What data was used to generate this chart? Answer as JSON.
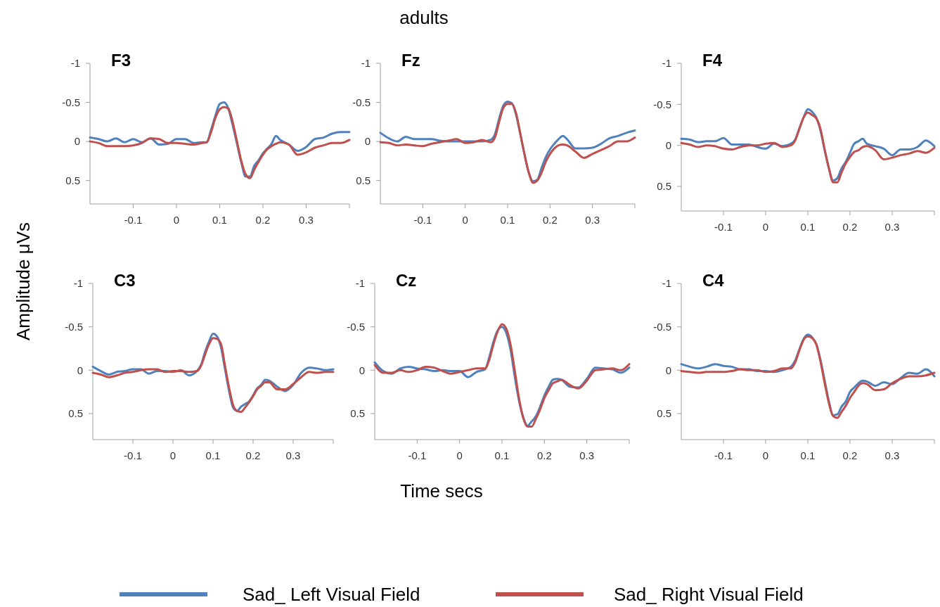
{
  "chart_data": [
    {
      "type": "line",
      "title": "F3",
      "annotations": [
        "adults"
      ],
      "xlabel": "Time secs",
      "ylabel": "Amplitude μVs",
      "legend": "bottom",
      "x": [
        -0.2,
        -0.18,
        -0.16,
        -0.14,
        -0.12,
        -0.1,
        -0.08,
        -0.06,
        -0.04,
        -0.02,
        0,
        0.02,
        0.04,
        0.06,
        0.07,
        0.08,
        0.09,
        0.1,
        0.11,
        0.12,
        0.13,
        0.14,
        0.15,
        0.16,
        0.17,
        0.18,
        0.19,
        0.2,
        0.21,
        0.22,
        0.23,
        0.24,
        0.26,
        0.28,
        0.3,
        0.32,
        0.34,
        0.36,
        0.38,
        0.4
      ],
      "xlim": [
        -0.2,
        0.4
      ],
      "xticks": [
        -0.1,
        0,
        0.1,
        0.2,
        0.3
      ],
      "ylim": [
        0.8,
        -1
      ],
      "yticks": [
        -1,
        -0.5,
        0,
        0.5
      ],
      "series": [
        {
          "name": "Sad_ Left Visual Field",
          "color": "#4f81bd",
          "values": [
            -0.05,
            -0.03,
            0,
            -0.04,
            0.01,
            -0.03,
            0.01,
            -0.04,
            0.04,
            0.03,
            -0.03,
            -0.03,
            0.02,
            0.01,
            0.01,
            -0.15,
            -0.33,
            -0.48,
            -0.5,
            -0.42,
            -0.21,
            0.03,
            0.27,
            0.45,
            0.45,
            0.31,
            0.24,
            0.15,
            0.09,
            0.03,
            -0.07,
            -0.02,
            0.04,
            0.12,
            0.07,
            -0.03,
            -0.05,
            -0.1,
            -0.12,
            -0.12
          ]
        },
        {
          "name": "Sad_ Right Visual Field",
          "color": "#c0504d",
          "values": [
            0,
            0.02,
            0.06,
            0.06,
            0.06,
            0.05,
            0.02,
            -0.04,
            -0.03,
            0.02,
            0.02,
            0.03,
            0.04,
            0.02,
            0.01,
            -0.12,
            -0.3,
            -0.41,
            -0.44,
            -0.42,
            -0.25,
            0,
            0.25,
            0.42,
            0.47,
            0.36,
            0.26,
            0.17,
            0.1,
            0.06,
            0.03,
            0.01,
            0.04,
            0.17,
            0.14,
            0.08,
            0.05,
            0.02,
            0.02,
            -0.02
          ]
        }
      ]
    },
    {
      "type": "line",
      "title": "Fz",
      "x": [
        -0.2,
        -0.18,
        -0.16,
        -0.14,
        -0.12,
        -0.1,
        -0.08,
        -0.06,
        -0.04,
        -0.02,
        0,
        0.02,
        0.04,
        0.06,
        0.07,
        0.08,
        0.09,
        0.1,
        0.11,
        0.12,
        0.13,
        0.14,
        0.15,
        0.16,
        0.17,
        0.18,
        0.19,
        0.2,
        0.21,
        0.22,
        0.23,
        0.24,
        0.26,
        0.28,
        0.3,
        0.32,
        0.34,
        0.36,
        0.38,
        0.4
      ],
      "xlim": [
        -0.2,
        0.4
      ],
      "xticks": [
        -0.1,
        0,
        0.1,
        0.2,
        0.3
      ],
      "ylim": [
        0.8,
        -1
      ],
      "yticks": [
        -1,
        -0.5,
        0,
        0.5
      ],
      "series": [
        {
          "color": "#4f81bd",
          "values": [
            -0.11,
            -0.04,
            0,
            -0.06,
            -0.03,
            -0.03,
            -0.03,
            -0.01,
            0,
            0,
            0,
            0,
            0,
            -0.02,
            -0.09,
            -0.29,
            -0.46,
            -0.51,
            -0.49,
            -0.34,
            -0.09,
            0.17,
            0.4,
            0.51,
            0.49,
            0.34,
            0.2,
            0.1,
            0.03,
            -0.03,
            -0.07,
            -0.03,
            0.09,
            0.09,
            0.08,
            0.03,
            -0.04,
            -0.07,
            -0.11,
            -0.14
          ]
        },
        {
          "color": "#c0504d",
          "values": [
            0.01,
            0.02,
            0.05,
            0.04,
            0.05,
            0.06,
            0.03,
            0.01,
            -0.01,
            -0.03,
            0.02,
            0.01,
            -0.02,
            0.01,
            -0.05,
            -0.25,
            -0.43,
            -0.48,
            -0.48,
            -0.36,
            -0.1,
            0.17,
            0.4,
            0.53,
            0.5,
            0.4,
            0.26,
            0.16,
            0.09,
            0.05,
            0.04,
            0.05,
            0.13,
            0.21,
            0.16,
            0.11,
            0.06,
            0,
            0,
            -0.05
          ]
        }
      ]
    },
    {
      "type": "line",
      "title": "F4",
      "x": [
        -0.2,
        -0.18,
        -0.16,
        -0.14,
        -0.12,
        -0.1,
        -0.08,
        -0.06,
        -0.04,
        -0.02,
        0,
        0.02,
        0.04,
        0.06,
        0.07,
        0.08,
        0.09,
        0.1,
        0.11,
        0.12,
        0.13,
        0.14,
        0.15,
        0.16,
        0.17,
        0.18,
        0.19,
        0.2,
        0.21,
        0.22,
        0.23,
        0.24,
        0.26,
        0.28,
        0.3,
        0.32,
        0.34,
        0.36,
        0.38,
        0.4
      ],
      "xlim": [
        -0.2,
        0.4
      ],
      "xticks": [
        -0.1,
        0,
        0.1,
        0.2,
        0.3
      ],
      "ylim": [
        0.8,
        -1
      ],
      "yticks": [
        -1,
        -0.5,
        0,
        0.5
      ],
      "series": [
        {
          "color": "#4f81bd",
          "values": [
            -0.08,
            -0.07,
            -0.04,
            -0.05,
            -0.05,
            -0.09,
            -0.01,
            -0.01,
            -0.01,
            0.02,
            0.04,
            -0.02,
            0.01,
            -0.02,
            -0.07,
            -0.21,
            -0.34,
            -0.44,
            -0.41,
            -0.34,
            -0.18,
            0.06,
            0.28,
            0.43,
            0.4,
            0.28,
            0.2,
            0.09,
            -0.02,
            -0.05,
            -0.08,
            -0.02,
            0.01,
            0.04,
            0.12,
            0.05,
            0.05,
            0.02,
            -0.06,
            0.01
          ]
        },
        {
          "color": "#c0504d",
          "values": [
            -0.03,
            -0.01,
            0.02,
            0,
            0.01,
            0.04,
            0.05,
            0.02,
            0,
            0,
            -0.02,
            -0.03,
            0.02,
            0,
            -0.06,
            -0.2,
            -0.34,
            -0.4,
            -0.37,
            -0.33,
            -0.2,
            0.05,
            0.28,
            0.45,
            0.45,
            0.33,
            0.22,
            0.14,
            0.08,
            0.06,
            0.02,
            0.01,
            0.06,
            0.17,
            0.15,
            0.12,
            0.1,
            0.07,
            0.09,
            0.03
          ]
        }
      ]
    },
    {
      "type": "line",
      "title": "C3",
      "x": [
        -0.2,
        -0.18,
        -0.16,
        -0.14,
        -0.12,
        -0.1,
        -0.08,
        -0.06,
        -0.04,
        -0.02,
        0,
        0.02,
        0.04,
        0.06,
        0.07,
        0.08,
        0.09,
        0.1,
        0.11,
        0.12,
        0.13,
        0.14,
        0.15,
        0.16,
        0.17,
        0.18,
        0.19,
        0.2,
        0.21,
        0.22,
        0.23,
        0.24,
        0.26,
        0.28,
        0.3,
        0.32,
        0.34,
        0.36,
        0.38,
        0.4
      ],
      "xlim": [
        -0.2,
        0.4
      ],
      "xticks": [
        -0.1,
        0,
        0.1,
        0.2,
        0.3
      ],
      "ylim": [
        0.8,
        -1
      ],
      "yticks": [
        -1,
        -0.5,
        0,
        0.5
      ],
      "series": [
        {
          "color": "#4f81bd",
          "values": [
            -0.04,
            0.01,
            0.05,
            0.02,
            0.01,
            -0.01,
            -0.01,
            0.04,
            0.01,
            0.01,
            0.02,
            0,
            0.06,
            0.01,
            -0.06,
            -0.21,
            -0.33,
            -0.42,
            -0.39,
            -0.26,
            -0.01,
            0.24,
            0.43,
            0.47,
            0.42,
            0.39,
            0.36,
            0.29,
            0.21,
            0.17,
            0.11,
            0.12,
            0.19,
            0.24,
            0.17,
            0.03,
            -0.03,
            -0.02,
            0,
            -0.01
          ]
        },
        {
          "color": "#c0504d",
          "values": [
            0.03,
            0.05,
            0.08,
            0.06,
            0.03,
            0.02,
            0,
            -0.01,
            -0.01,
            0.02,
            0.01,
            0.01,
            0.02,
            0.01,
            -0.05,
            -0.18,
            -0.3,
            -0.37,
            -0.36,
            -0.3,
            -0.05,
            0.2,
            0.4,
            0.47,
            0.48,
            0.43,
            0.37,
            0.3,
            0.22,
            0.18,
            0.14,
            0.14,
            0.22,
            0.22,
            0.16,
            0.08,
            0.02,
            0.03,
            0.02,
            0.02
          ]
        }
      ]
    },
    {
      "type": "line",
      "title": "Cz",
      "x": [
        -0.2,
        -0.18,
        -0.16,
        -0.14,
        -0.12,
        -0.1,
        -0.08,
        -0.06,
        -0.04,
        -0.02,
        0,
        0.02,
        0.04,
        0.06,
        0.07,
        0.08,
        0.09,
        0.1,
        0.11,
        0.12,
        0.13,
        0.14,
        0.15,
        0.16,
        0.17,
        0.18,
        0.19,
        0.2,
        0.21,
        0.22,
        0.23,
        0.24,
        0.26,
        0.28,
        0.3,
        0.32,
        0.34,
        0.36,
        0.38,
        0.4
      ],
      "xlim": [
        -0.2,
        0.4
      ],
      "xticks": [
        -0.1,
        0,
        0.1,
        0.2,
        0.3
      ],
      "ylim": [
        0.8,
        -1
      ],
      "yticks": [
        -1,
        -0.5,
        0,
        0.5
      ],
      "series": [
        {
          "color": "#4f81bd",
          "values": [
            -0.09,
            0.01,
            0.04,
            -0.02,
            -0.04,
            -0.02,
            -0.01,
            0.01,
            0,
            0.01,
            0.01,
            0.08,
            0.02,
            -0.01,
            -0.15,
            -0.33,
            -0.46,
            -0.5,
            -0.43,
            -0.24,
            0.07,
            0.35,
            0.54,
            0.64,
            0.59,
            0.53,
            0.42,
            0.29,
            0.19,
            0.11,
            0.1,
            0.11,
            0.19,
            0.2,
            0.1,
            -0.03,
            -0.02,
            -0.01,
            0.03,
            -0.03
          ]
        },
        {
          "color": "#c0504d",
          "values": [
            -0.06,
            0.03,
            0.03,
            0,
            0.02,
            0,
            -0.04,
            -0.03,
            0.01,
            0.04,
            0.02,
            0,
            -0.02,
            -0.02,
            -0.12,
            -0.3,
            -0.45,
            -0.53,
            -0.48,
            -0.3,
            0,
            0.32,
            0.55,
            0.65,
            0.65,
            0.56,
            0.45,
            0.32,
            0.23,
            0.15,
            0.13,
            0.11,
            0.17,
            0.21,
            0.12,
            0,
            -0.01,
            -0.02,
            0,
            -0.07
          ]
        }
      ]
    },
    {
      "type": "line",
      "title": "C4",
      "x": [
        -0.2,
        -0.18,
        -0.16,
        -0.14,
        -0.12,
        -0.1,
        -0.08,
        -0.06,
        -0.04,
        -0.02,
        0,
        0.02,
        0.04,
        0.06,
        0.07,
        0.08,
        0.09,
        0.1,
        0.11,
        0.12,
        0.13,
        0.14,
        0.15,
        0.16,
        0.17,
        0.18,
        0.19,
        0.2,
        0.21,
        0.22,
        0.23,
        0.24,
        0.26,
        0.28,
        0.3,
        0.32,
        0.34,
        0.36,
        0.38,
        0.4
      ],
      "xlim": [
        -0.2,
        0.4
      ],
      "xticks": [
        -0.1,
        0,
        0.1,
        0.2,
        0.3
      ],
      "ylim": [
        0.8,
        -1
      ],
      "yticks": [
        -1,
        -0.5,
        0,
        0.5
      ],
      "series": [
        {
          "color": "#4f81bd",
          "values": [
            -0.07,
            -0.04,
            -0.02,
            -0.04,
            -0.07,
            -0.05,
            -0.04,
            -0.01,
            -0.01,
            0.01,
            0.01,
            0.02,
            0,
            -0.04,
            -0.11,
            -0.24,
            -0.36,
            -0.41,
            -0.38,
            -0.3,
            -0.12,
            0.12,
            0.36,
            0.52,
            0.51,
            0.42,
            0.36,
            0.25,
            0.2,
            0.15,
            0.12,
            0.13,
            0.18,
            0.14,
            0.16,
            0.09,
            0.03,
            0.04,
            -0.01,
            0.07
          ]
        },
        {
          "color": "#c0504d",
          "values": [
            0.01,
            0.02,
            0.03,
            0.02,
            0.02,
            0.02,
            0.01,
            -0.01,
            0,
            0,
            0.02,
            0.01,
            -0.02,
            -0.02,
            -0.09,
            -0.23,
            -0.35,
            -0.39,
            -0.37,
            -0.3,
            -0.1,
            0.15,
            0.38,
            0.53,
            0.55,
            0.48,
            0.41,
            0.32,
            0.25,
            0.18,
            0.15,
            0.16,
            0.23,
            0.22,
            0.15,
            0.1,
            0.07,
            0.07,
            0.06,
            0.03
          ]
        }
      ]
    }
  ]
}
